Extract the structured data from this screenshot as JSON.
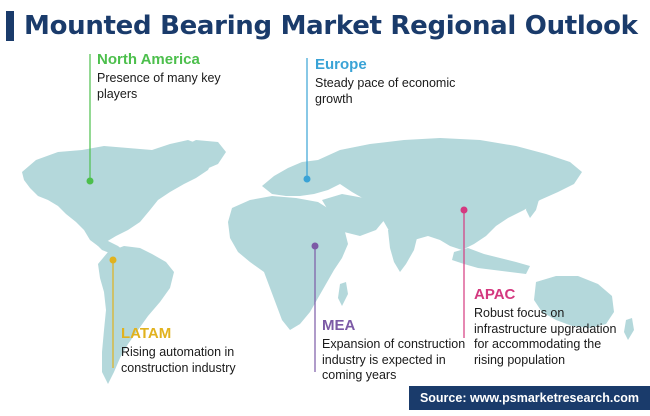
{
  "title": "Mounted Bearing Market Regional Outlook",
  "colors": {
    "title": "#1a3b6b",
    "land": "#b4d8db",
    "north_america": "#4cbf4c",
    "europe": "#3aa3d6",
    "latam": "#e1b21e",
    "mea": "#7c5aa6",
    "apac": "#d4387f",
    "source_bg": "#1a3b6b"
  },
  "regions": {
    "north_america": {
      "name": "North America",
      "desc": "Presence of many key players"
    },
    "europe": {
      "name": "Europe",
      "desc": "Steady pace of economic growth"
    },
    "latam": {
      "name": "LATAM",
      "desc": "Rising automation in construction industry"
    },
    "mea": {
      "name": "MEA",
      "desc": "Expansion of construction industry is expected in coming years"
    },
    "apac": {
      "name": "APAC",
      "desc": "Robust focus on infrastructure upgradation for accommodating the rising population"
    }
  },
  "source": "Source: www.psmarketresearch.com",
  "icons": {
    "title_marker": "vertical-bar"
  }
}
